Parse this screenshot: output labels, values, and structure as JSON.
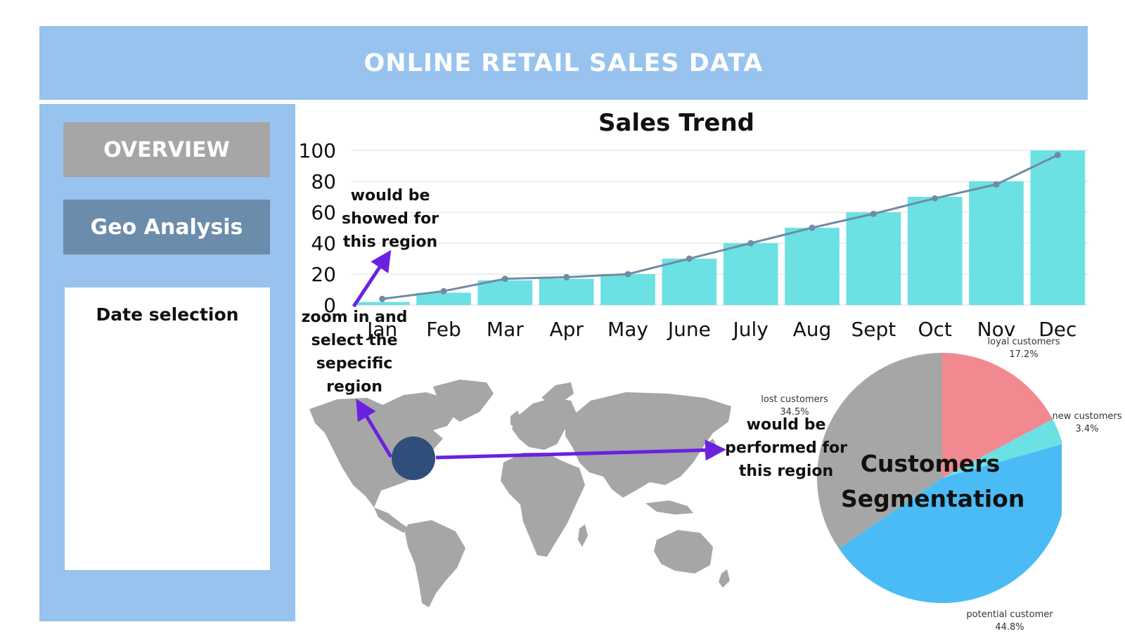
{
  "header": {
    "title": "ONLINE RETAIL SALES DATA"
  },
  "sidebar": {
    "overview_label": "OVERVIEW",
    "geo_label": "Geo Analysis",
    "date_panel_title": "Date selection"
  },
  "annotations": {
    "sales_note": "would be showed for this region",
    "zoom_note": "zoom in and select the sepecific region",
    "segment_note": "would be performed for this region"
  },
  "colors": {
    "header_bg": "#97c3ee",
    "overview_bg": "#a6a6a6",
    "geo_bg": "#6c8cab",
    "bar": "#6ce1e3",
    "line": "#6f8ba6",
    "arrow": "#6a22e0",
    "marker": "#2f4e7a",
    "map_land": "#a6a6a6"
  },
  "chart_data": [
    {
      "type": "bar",
      "title": "Sales Trend",
      "xlabel": "",
      "ylabel": "",
      "categories": [
        "Jan",
        "Feb",
        "Mar",
        "Apr",
        "May",
        "June",
        "July",
        "Aug",
        "Sept",
        "Oct",
        "Nov",
        "Dec"
      ],
      "series": [
        {
          "type": "bar",
          "values": [
            2,
            8,
            16,
            17,
            20,
            30,
            40,
            50,
            60,
            70,
            80,
            100
          ]
        },
        {
          "type": "line",
          "values": [
            4,
            9,
            17,
            18,
            20,
            30,
            40,
            50,
            59,
            69,
            78,
            97
          ]
        }
      ],
      "ylim": [
        0,
        100
      ],
      "yticks": [
        0,
        20,
        40,
        60,
        80,
        100
      ],
      "grid": true
    },
    {
      "type": "pie",
      "title": "Customers Segmentation",
      "slices": [
        {
          "label": "loyal customers",
          "value": 17.2,
          "display": "17.2%",
          "color": "#f28890"
        },
        {
          "label": "new customers",
          "value": 3.4,
          "display": "3.4%",
          "color": "#6ce1e3"
        },
        {
          "label": "potential customer",
          "value": 44.8,
          "display": "44.8%",
          "color": "#4bbbf6"
        },
        {
          "label": "lost customers",
          "value": 34.5,
          "display": "34.5%",
          "color": "#a6a6a6"
        }
      ]
    }
  ]
}
